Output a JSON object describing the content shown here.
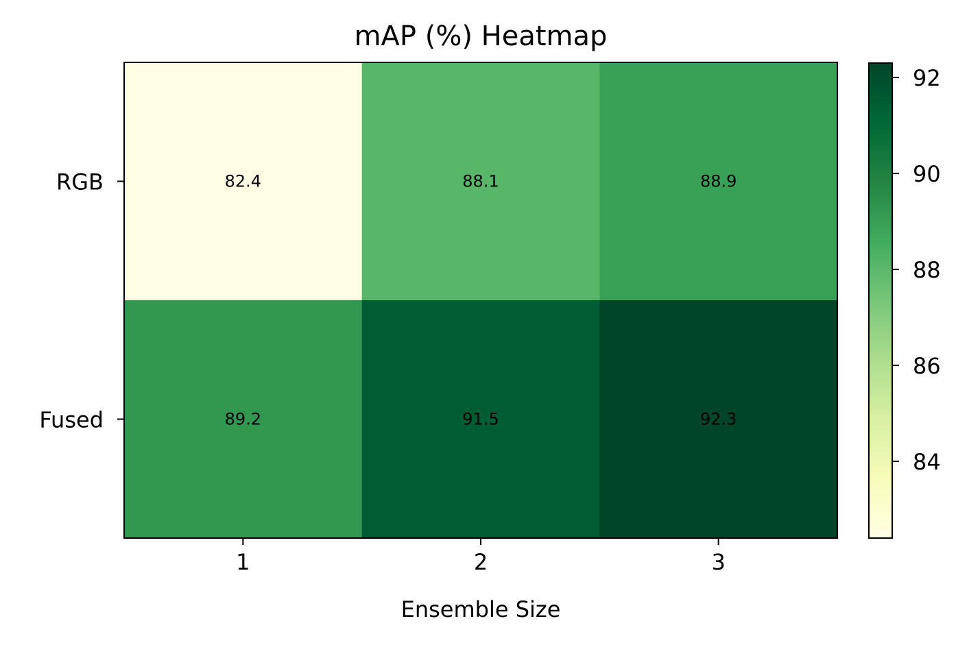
{
  "chart_data": {
    "type": "heatmap",
    "title": "mAP (%) Heatmap",
    "xlabel": "Ensemble Size",
    "ylabel": "",
    "x_categories": [
      "1",
      "2",
      "3"
    ],
    "y_categories": [
      "RGB",
      "Fused"
    ],
    "values": [
      [
        82.4,
        88.1,
        88.9
      ],
      [
        89.2,
        91.5,
        92.3
      ]
    ],
    "value_labels": [
      [
        "82.4",
        "88.1",
        "88.9"
      ],
      [
        "89.2",
        "91.5",
        "92.3"
      ]
    ],
    "colormap": "YlGn",
    "colorbar": {
      "range": [
        82.4,
        92.3
      ],
      "ticks": [
        84,
        86,
        88,
        90,
        92
      ],
      "tick_labels": [
        "84",
        "86",
        "88",
        "90",
        "92"
      ],
      "position": "right"
    }
  }
}
